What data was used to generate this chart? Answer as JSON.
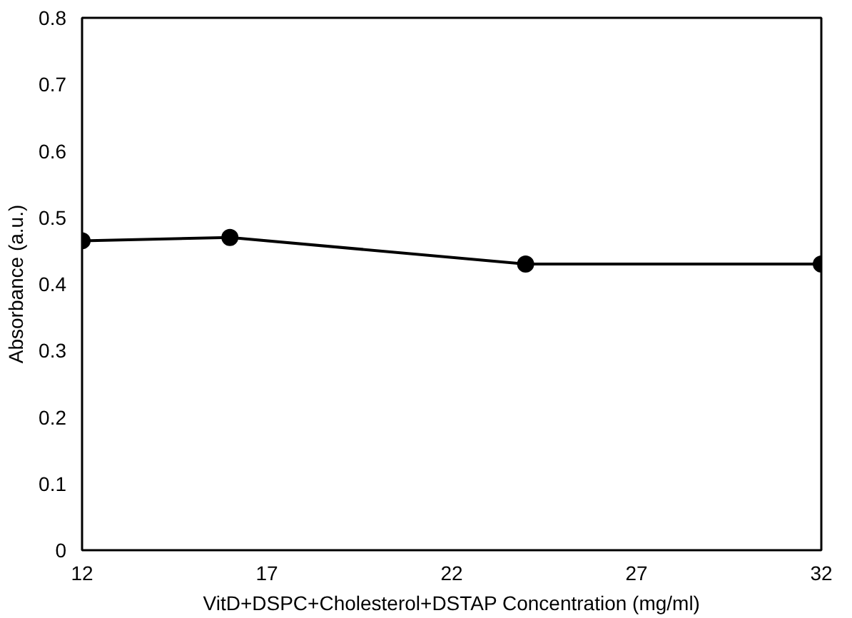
{
  "chart_data": {
    "type": "line",
    "xlabel": "VitD+DSPC+Cholesterol+DSTAP Concentration (mg/ml)",
    "ylabel": "Absorbance (a.u.)",
    "x": [
      12,
      16,
      24,
      32
    ],
    "series": [
      {
        "color": "#000000",
        "values": [
          0.465,
          0.47,
          0.43,
          0.43
        ]
      }
    ],
    "xlim": [
      12,
      32
    ],
    "xticks": [
      12,
      17,
      22,
      27,
      32
    ],
    "ylim": [
      0,
      0.8
    ],
    "yticks": [
      0,
      0.1,
      0.2,
      0.3,
      0.4,
      0.5,
      0.6,
      0.7,
      0.8
    ],
    "grid": false,
    "marker": "circle",
    "line_style": "solid"
  }
}
